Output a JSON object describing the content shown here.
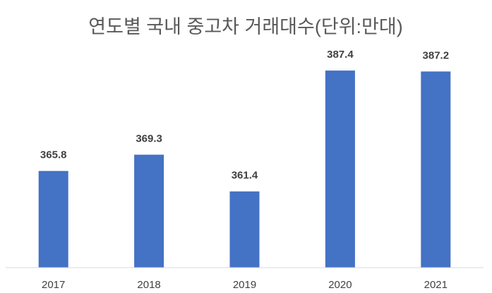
{
  "chart_data": {
    "type": "bar",
    "title": "연도별 국내 중고차 거래대수(단위:만대)",
    "categories": [
      "2017",
      "2018",
      "2019",
      "2020",
      "2021"
    ],
    "values": [
      365.8,
      369.3,
      361.4,
      387.4,
      387.2
    ],
    "color": "#4472c4",
    "ylim": [
      345,
      395
    ],
    "grid": false
  }
}
